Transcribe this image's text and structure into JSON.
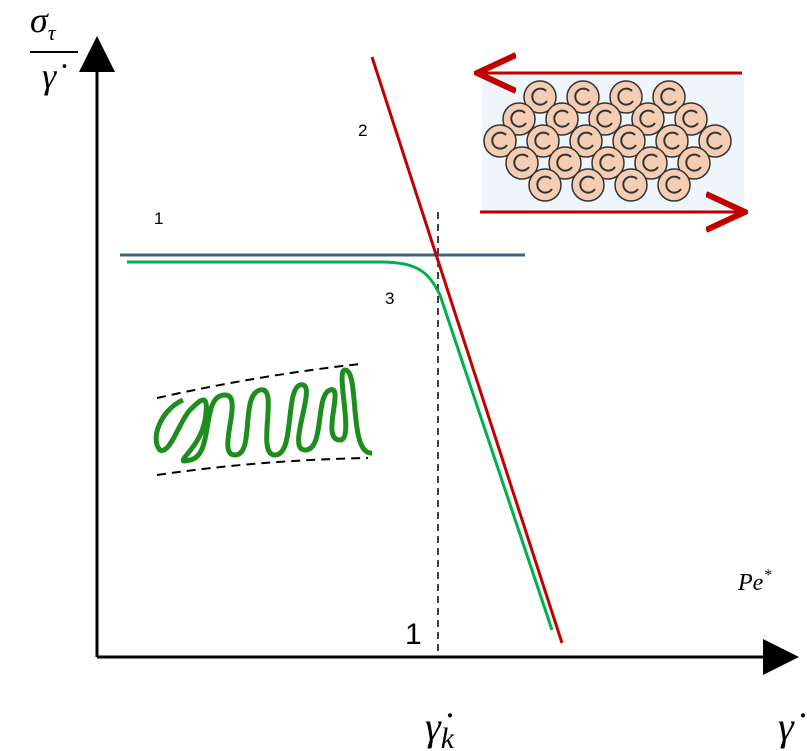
{
  "y_axis": {
    "numerator": "σ",
    "numerator_subscript": "τ",
    "denominator": "γ̇"
  },
  "x_axis": {
    "label": "γ̇",
    "critical_rate": "γ̇",
    "critical_subscript": "k",
    "secondary_label": "Pe",
    "secondary_superscript": "*",
    "unit_mark": "1"
  },
  "curves": [
    {
      "label": "1"
    },
    {
      "label": "2"
    },
    {
      "label": "3"
    }
  ]
}
